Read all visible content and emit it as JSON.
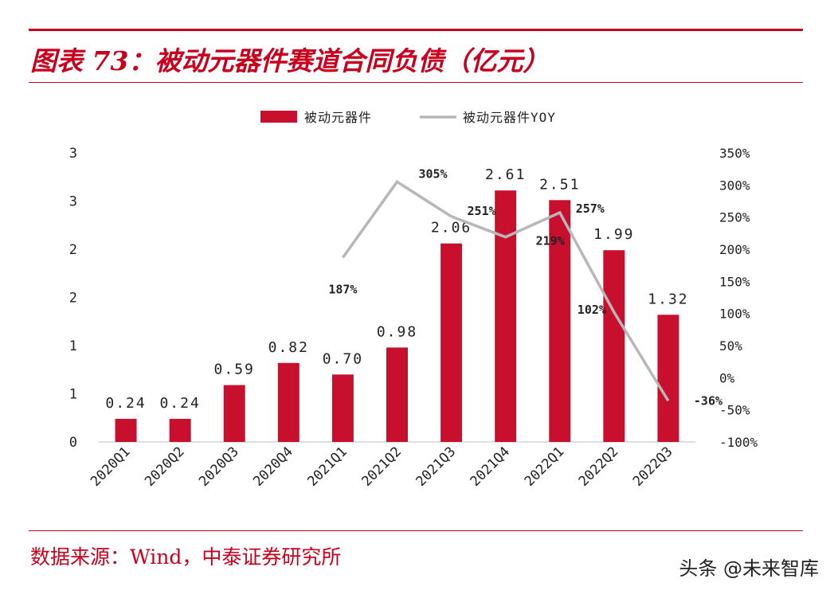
{
  "title": "图表 73：被动元器件赛道合同负债（亿元）",
  "source": "数据来源：Wind，中泰证券研究所",
  "watermark": "头条 @未来智库",
  "colors": {
    "accent": "#c8001e",
    "bar": "#c8102e",
    "line": "#b7b7b7",
    "text": "#222222",
    "axis": "#bfbfbf"
  },
  "chart_data": {
    "type": "bar",
    "categories": [
      "2020Q1",
      "2020Q2",
      "2020Q3",
      "2020Q4",
      "2021Q1",
      "2021Q2",
      "2021Q3",
      "2021Q4",
      "2022Q1",
      "2022Q2",
      "2022Q3"
    ],
    "series": [
      {
        "name": "被动元器件",
        "type": "bar",
        "axis": "left",
        "values": [
          0.24,
          0.24,
          0.59,
          0.82,
          0.7,
          0.98,
          2.06,
          2.61,
          2.51,
          1.99,
          1.32
        ],
        "labels": [
          "0.24",
          "0.24",
          "0.59",
          "0.82",
          "0.70",
          "0.98",
          "2.06",
          "2.61",
          "2.51",
          "1.99",
          "1.32"
        ]
      },
      {
        "name": "被动元器件YOY",
        "type": "line",
        "axis": "right",
        "values": [
          null,
          null,
          null,
          null,
          187,
          305,
          251,
          219,
          257,
          102,
          -36
        ],
        "labels": [
          "",
          "",
          "",
          "",
          "187%",
          "305%",
          "251%",
          "219%",
          "257%",
          "102%",
          "-36%"
        ]
      }
    ],
    "left_axis": {
      "ylim": [
        0,
        3
      ],
      "tick_labels": [
        "0",
        "1",
        "1",
        "2",
        "2",
        "3",
        "3"
      ]
    },
    "right_axis": {
      "ylim": [
        -100,
        350
      ],
      "tick_labels": [
        "-100%",
        "-50%",
        "0%",
        "50%",
        "100%",
        "150%",
        "200%",
        "250%",
        "300%",
        "350%"
      ]
    },
    "legend": {
      "position": "top-center"
    }
  }
}
